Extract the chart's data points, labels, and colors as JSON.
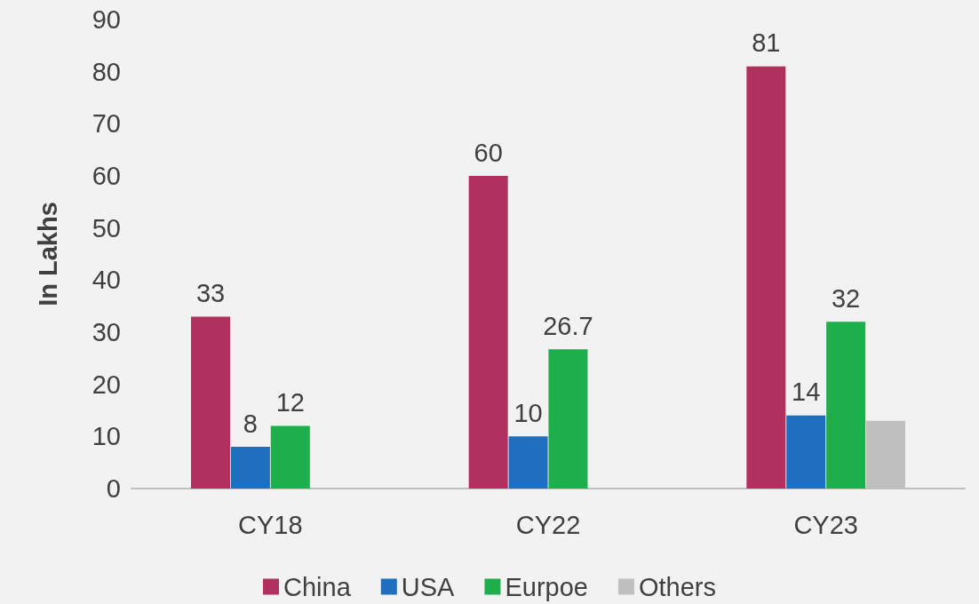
{
  "chart_data": {
    "type": "bar",
    "ylabel": "In Lakhs",
    "categories": [
      "CY18",
      "CY22",
      "CY23"
    ],
    "series": [
      {
        "name": "China",
        "color": "#b0305e",
        "values": [
          33,
          60,
          81
        ],
        "value_labels": [
          "33",
          "60",
          "81"
        ]
      },
      {
        "name": "USA",
        "color": "#1f6fc0",
        "values": [
          8,
          10,
          14
        ],
        "value_labels": [
          "8",
          "10",
          "14"
        ]
      },
      {
        "name": "Eurpoe",
        "color": "#1fae4c",
        "values": [
          12,
          26.7,
          32
        ],
        "value_labels": [
          "12",
          "26.7",
          "32"
        ]
      },
      {
        "name": "Others",
        "color": "#bfbfbf",
        "values": [
          null,
          null,
          13
        ],
        "value_labels": [
          null,
          null,
          null
        ]
      }
    ],
    "ylim": [
      0,
      90
    ],
    "yticks": [
      0,
      10,
      20,
      30,
      40,
      50,
      60,
      70,
      80,
      90
    ],
    "grid": false,
    "legend": "bottom"
  }
}
